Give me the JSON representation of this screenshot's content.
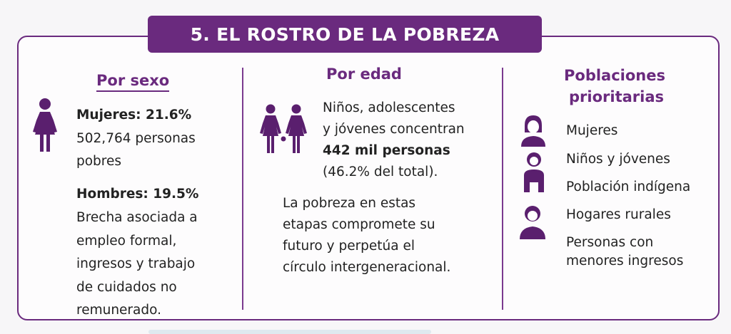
{
  "title": "5. EL ROSTRO DE LA POBREZA",
  "sexo": {
    "heading": "Por sexo",
    "mujeres_label": "Mujeres: 21.6%",
    "mujeres_l1": "502,764 personas",
    "mujeres_l2": "pobres",
    "hombres_label": "Hombres: 19.5%",
    "hombres_lines": [
      "Brecha asociada a",
      "empleo formal,",
      "ingresos y trabajo",
      "de cuidados no",
      "remunerado."
    ]
  },
  "edad": {
    "heading": "Por edad",
    "p1_l1": "Niños, adolescentes",
    "p1_l2": "y jóvenes concentran",
    "p1_l3": "442 mil personas",
    "p1_l4": "(46.2% del total).",
    "p2_lines": [
      "La pobreza en estas",
      "etapas compromete su",
      "futuro y perpetúa el",
      "círculo intergeneracional."
    ]
  },
  "prioritarias": {
    "heading_l1": "Poblaciones",
    "heading_l2": "prioritarias",
    "items": [
      "Mujeres",
      "Niños y jóvenes",
      "Población indígena",
      "Hogares rurales"
    ],
    "last_l1": "Personas con",
    "last_l2": "menores ingresos"
  },
  "colors": {
    "accent": "#6a2a7e",
    "icon": "#5a1f6e"
  },
  "icons": [
    "woman-icon",
    "children-icon",
    "woman-portrait-icon",
    "child-portrait-icon",
    "indigenous-portrait-icon",
    "rural-portrait-icon"
  ]
}
